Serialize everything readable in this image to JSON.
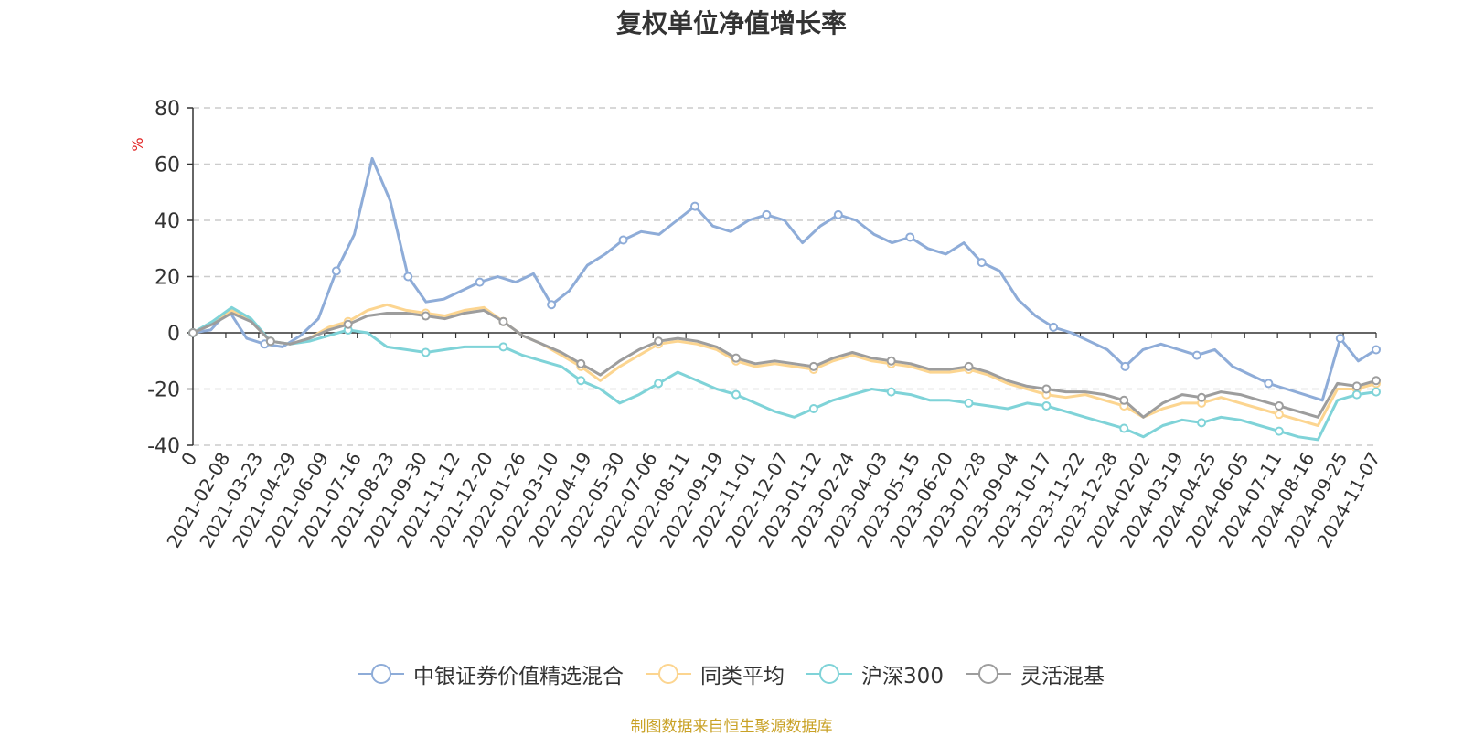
{
  "chart_data": {
    "type": "line",
    "title": "复权单位净值增长率",
    "ylabel": "%",
    "xlabel": "",
    "ylim": [
      -40,
      80
    ],
    "yticks": [
      -40,
      -20,
      0,
      20,
      40,
      60,
      80
    ],
    "grid": true,
    "legend_position": "bottom-center",
    "x_start_label": "0",
    "x_tick_labels": [
      "0",
      "2021-02-08",
      "2021-03-23",
      "2021-04-29",
      "2021-06-09",
      "2021-07-16",
      "2021-08-23",
      "2021-09-30",
      "2021-11-12",
      "2021-12-20",
      "2022-01-26",
      "2022-03-10",
      "2022-04-19",
      "2022-05-30",
      "2022-07-06",
      "2022-08-11",
      "2022-09-19",
      "2022-11-01",
      "2022-12-07",
      "2023-01-12",
      "2023-02-24",
      "2023-04-03",
      "2023-05-15",
      "2023-06-20",
      "2023-07-28",
      "2023-09-04",
      "2023-10-17",
      "2023-11-22",
      "2023-12-28",
      "2024-02-02",
      "2024-03-19",
      "2024-04-25",
      "2024-06-05",
      "2024-07-11",
      "2024-08-16",
      "2024-09-25",
      "2024-11-07"
    ],
    "series": [
      {
        "name": "中银证券价值精选混合",
        "color": "#8eacd8",
        "values": [
          0,
          1,
          8,
          -2,
          -4,
          -5,
          -1,
          5,
          22,
          35,
          62,
          47,
          20,
          11,
          12,
          15,
          18,
          20,
          18,
          21,
          10,
          15,
          24,
          28,
          33,
          36,
          35,
          40,
          45,
          38,
          36,
          40,
          42,
          40,
          32,
          38,
          42,
          40,
          35,
          32,
          34,
          30,
          28,
          32,
          25,
          22,
          12,
          6,
          2,
          0,
          -3,
          -6,
          -12,
          -6,
          -4,
          -6,
          -8,
          -6,
          -12,
          -15,
          -18,
          -20,
          -22,
          -24,
          -2,
          -10,
          -6
        ]
      },
      {
        "name": "同类平均",
        "color": "#fcd590",
        "values": [
          0,
          3,
          8,
          4,
          -3,
          -4,
          -2,
          2,
          4,
          8,
          10,
          8,
          7,
          6,
          8,
          9,
          4,
          -1,
          -4,
          -8,
          -12,
          -17,
          -12,
          -8,
          -4,
          -3,
          -4,
          -6,
          -10,
          -12,
          -11,
          -12,
          -13,
          -10,
          -8,
          -10,
          -11,
          -12,
          -14,
          -14,
          -13,
          -15,
          -18,
          -20,
          -22,
          -23,
          -22,
          -24,
          -26,
          -30,
          -27,
          -25,
          -25,
          -23,
          -25,
          -27,
          -29,
          -31,
          -33,
          -20,
          -20,
          -18
        ]
      },
      {
        "name": "沪深300",
        "color": "#7fd3d8",
        "values": [
          0,
          4,
          9,
          5,
          -3,
          -4,
          -3,
          -1,
          1,
          0,
          -5,
          -6,
          -7,
          -6,
          -5,
          -5,
          -5,
          -8,
          -10,
          -12,
          -17,
          -20,
          -25,
          -22,
          -18,
          -14,
          -17,
          -20,
          -22,
          -25,
          -28,
          -30,
          -27,
          -24,
          -22,
          -20,
          -21,
          -22,
          -24,
          -24,
          -25,
          -26,
          -27,
          -25,
          -26,
          -28,
          -30,
          -32,
          -34,
          -37,
          -33,
          -31,
          -32,
          -30,
          -31,
          -33,
          -35,
          -37,
          -38,
          -24,
          -22,
          -21
        ]
      },
      {
        "name": "灵活混基",
        "color": "#9d9d9d",
        "values": [
          0,
          3,
          7,
          4,
          -3,
          -4,
          -2,
          1,
          3,
          6,
          7,
          7,
          6,
          5,
          7,
          8,
          4,
          -1,
          -4,
          -7,
          -11,
          -15,
          -10,
          -6,
          -3,
          -2,
          -3,
          -5,
          -9,
          -11,
          -10,
          -11,
          -12,
          -9,
          -7,
          -9,
          -10,
          -11,
          -13,
          -13,
          -12,
          -14,
          -17,
          -19,
          -20,
          -21,
          -21,
          -22,
          -24,
          -30,
          -25,
          -22,
          -23,
          -21,
          -22,
          -24,
          -26,
          -28,
          -30,
          -18,
          -19,
          -17
        ]
      }
    ]
  },
  "source_note": "制图数据来自恒生聚源数据库"
}
